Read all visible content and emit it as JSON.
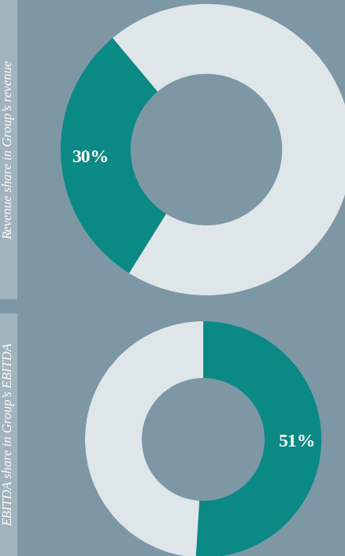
{
  "chart_data": [
    {
      "type": "pie",
      "title": "Revenue share in Group’s revenue",
      "values": [
        30,
        70
      ],
      "value_labels": [
        "30%",
        null
      ],
      "colors": [
        "#0b8a85",
        "#dfe6e9"
      ]
    },
    {
      "type": "pie",
      "title": "EBITDA share in Group’s EBITDA",
      "values": [
        51,
        49
      ],
      "value_labels": [
        "51%",
        null
      ],
      "colors": [
        "#0b8a85",
        "#dfe6e9"
      ]
    }
  ]
}
